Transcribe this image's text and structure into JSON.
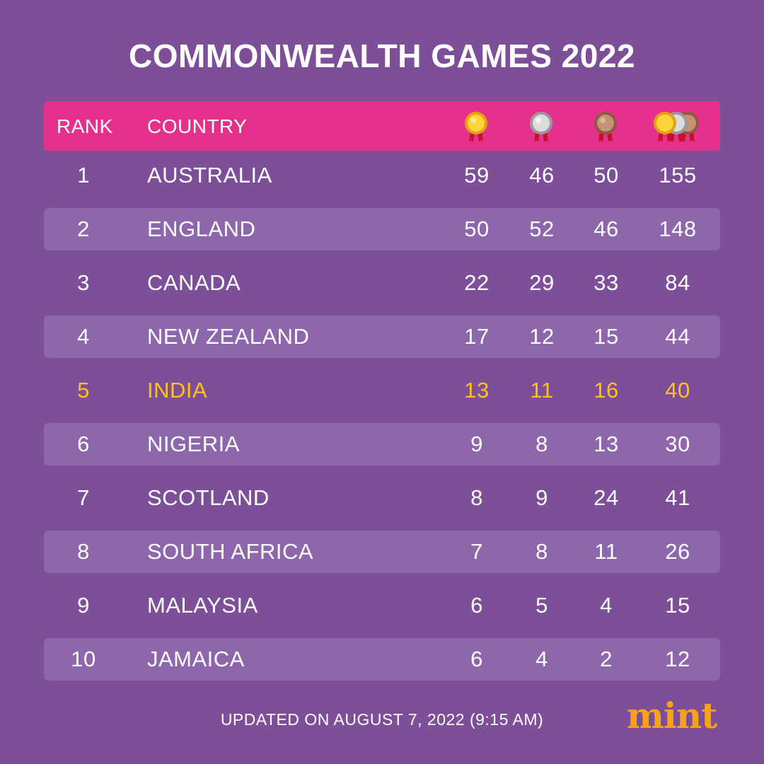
{
  "title": "COMMONWEALTH GAMES 2022",
  "header": {
    "rank": "RANK",
    "country": "COUNTRY",
    "icons": [
      "gold-medal-icon",
      "silver-medal-icon",
      "bronze-medal-icon",
      "all-medals-icon"
    ]
  },
  "colors": {
    "background": "#7d4f99",
    "header": "#e5308c",
    "stripe": "#8d66ab",
    "highlight": "#ffc21a",
    "logo": "#f7a21b"
  },
  "rows": [
    {
      "rank": "1",
      "country": "AUSTRALIA",
      "gold": "59",
      "silver": "46",
      "bronze": "50",
      "total": "155"
    },
    {
      "rank": "2",
      "country": "ENGLAND",
      "gold": "50",
      "silver": "52",
      "bronze": "46",
      "total": "148"
    },
    {
      "rank": "3",
      "country": "CANADA",
      "gold": "22",
      "silver": "29",
      "bronze": "33",
      "total": "84"
    },
    {
      "rank": "4",
      "country": "NEW ZEALAND",
      "gold": "17",
      "silver": "12",
      "bronze": "15",
      "total": "44"
    },
    {
      "rank": "5",
      "country": "INDIA",
      "gold": "13",
      "silver": "11",
      "bronze": "16",
      "total": "40"
    },
    {
      "rank": "6",
      "country": "NIGERIA",
      "gold": "9",
      "silver": "8",
      "bronze": "13",
      "total": "30"
    },
    {
      "rank": "7",
      "country": "SCOTLAND",
      "gold": "8",
      "silver": "9",
      "bronze": "24",
      "total": "41"
    },
    {
      "rank": "8",
      "country": "SOUTH AFRICA",
      "gold": "7",
      "silver": "8",
      "bronze": "11",
      "total": "26"
    },
    {
      "rank": "9",
      "country": "MALAYSIA",
      "gold": "6",
      "silver": "5",
      "bronze": "4",
      "total": "15"
    },
    {
      "rank": "10",
      "country": "JAMAICA",
      "gold": "6",
      "silver": "4",
      "bronze": "2",
      "total": "12"
    }
  ],
  "footer": "UPDATED ON AUGUST 7, 2022 (9:15 AM)",
  "logo": "mint"
}
